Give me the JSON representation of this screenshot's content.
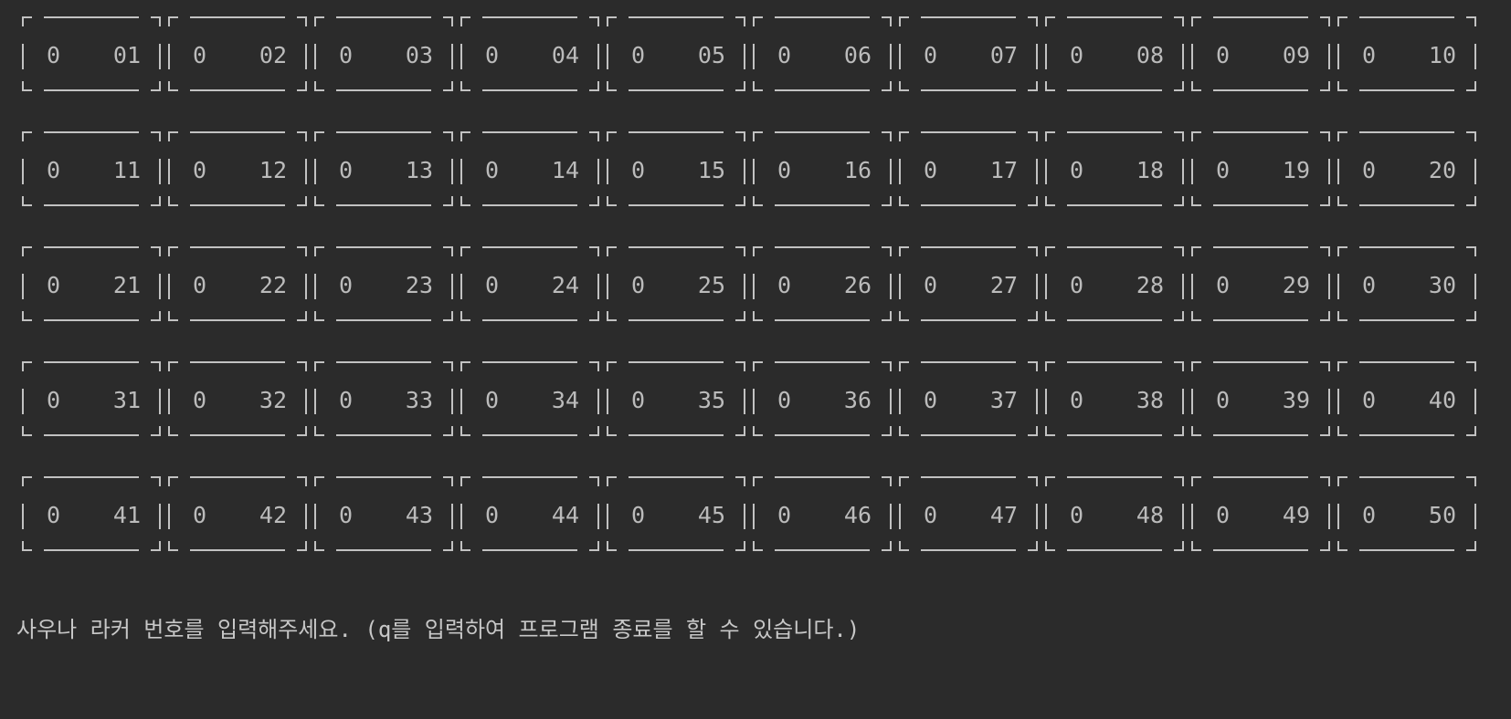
{
  "terminal": {
    "background": "#2b2b2b",
    "foreground": "#bbbbbb"
  },
  "lockers": [
    {
      "status": "0",
      "number": "01"
    },
    {
      "status": "0",
      "number": "02"
    },
    {
      "status": "0",
      "number": "03"
    },
    {
      "status": "0",
      "number": "04"
    },
    {
      "status": "0",
      "number": "05"
    },
    {
      "status": "0",
      "number": "06"
    },
    {
      "status": "0",
      "number": "07"
    },
    {
      "status": "0",
      "number": "08"
    },
    {
      "status": "0",
      "number": "09"
    },
    {
      "status": "0",
      "number": "10"
    },
    {
      "status": "0",
      "number": "11"
    },
    {
      "status": "0",
      "number": "12"
    },
    {
      "status": "0",
      "number": "13"
    },
    {
      "status": "0",
      "number": "14"
    },
    {
      "status": "0",
      "number": "15"
    },
    {
      "status": "0",
      "number": "16"
    },
    {
      "status": "0",
      "number": "17"
    },
    {
      "status": "0",
      "number": "18"
    },
    {
      "status": "0",
      "number": "19"
    },
    {
      "status": "0",
      "number": "20"
    },
    {
      "status": "0",
      "number": "21"
    },
    {
      "status": "0",
      "number": "22"
    },
    {
      "status": "0",
      "number": "23"
    },
    {
      "status": "0",
      "number": "24"
    },
    {
      "status": "0",
      "number": "25"
    },
    {
      "status": "0",
      "number": "26"
    },
    {
      "status": "0",
      "number": "27"
    },
    {
      "status": "0",
      "number": "28"
    },
    {
      "status": "0",
      "number": "29"
    },
    {
      "status": "0",
      "number": "30"
    },
    {
      "status": "0",
      "number": "31"
    },
    {
      "status": "0",
      "number": "32"
    },
    {
      "status": "0",
      "number": "33"
    },
    {
      "status": "0",
      "number": "34"
    },
    {
      "status": "0",
      "number": "35"
    },
    {
      "status": "0",
      "number": "36"
    },
    {
      "status": "0",
      "number": "37"
    },
    {
      "status": "0",
      "number": "38"
    },
    {
      "status": "0",
      "number": "39"
    },
    {
      "status": "0",
      "number": "40"
    },
    {
      "status": "0",
      "number": "41"
    },
    {
      "status": "0",
      "number": "42"
    },
    {
      "status": "0",
      "number": "43"
    },
    {
      "status": "0",
      "number": "44"
    },
    {
      "status": "0",
      "number": "45"
    },
    {
      "status": "0",
      "number": "46"
    },
    {
      "status": "0",
      "number": "47"
    },
    {
      "status": "0",
      "number": "48"
    },
    {
      "status": "0",
      "number": "49"
    },
    {
      "status": "0",
      "number": "50"
    }
  ],
  "prompt": {
    "text": "사우나 라커 번호를 입력해주세요. (q를 입력하여 프로그램 종료를 할 수 있습니다.)"
  }
}
